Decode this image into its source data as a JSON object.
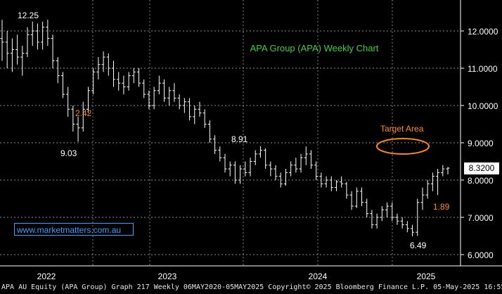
{
  "chart_data": {
    "type": "ohlc",
    "title": "APA Group (APA) Weekly Chart",
    "current_price_tag": "8.3200",
    "y_axis": {
      "ticks": [
        "12.0000",
        "11.0000",
        "10.0000",
        "9.0000",
        "8.0000",
        "7.0000",
        "6.0000"
      ],
      "tick_values": [
        12,
        11,
        10,
        9,
        8,
        7,
        6
      ],
      "ylim": [
        5.8,
        12.8
      ],
      "side": "right"
    },
    "x_axis": {
      "ticks": [
        "2022",
        "2023",
        "2024",
        "2025"
      ]
    },
    "grid": true,
    "annotations": [
      {
        "text": "12.25",
        "value": 12.25
      },
      {
        "text": "2.42",
        "color": "#ff8c1a"
      },
      {
        "text": "9.03",
        "value": 9.03
      },
      {
        "text": "8.91",
        "value": 8.91
      },
      {
        "text": "Target Area",
        "color": "#ff8c1a"
      },
      {
        "text": "1.89",
        "color": "#ff8c1a"
      },
      {
        "text": "6.49",
        "value": 6.49
      }
    ],
    "series": [
      {
        "values": [
          [
            11.8,
            12.3,
            11.2,
            11.7
          ],
          [
            11.7,
            12.0,
            11.0,
            11.4
          ],
          [
            11.4,
            11.8,
            10.9,
            11.5
          ],
          [
            11.5,
            11.9,
            11.1,
            11.3
          ],
          [
            11.3,
            11.6,
            10.8,
            11.4
          ],
          [
            11.4,
            12.1,
            11.3,
            11.9
          ],
          [
            11.9,
            12.25,
            11.6,
            12.0
          ],
          [
            12.0,
            12.2,
            11.5,
            11.7
          ],
          [
            11.7,
            12.25,
            11.5,
            12.1
          ],
          [
            12.1,
            12.3,
            11.6,
            11.8
          ],
          [
            11.8,
            11.9,
            11.0,
            11.2
          ],
          [
            11.2,
            11.3,
            10.6,
            10.8
          ],
          [
            10.8,
            10.9,
            10.2,
            10.3
          ],
          [
            10.3,
            10.5,
            9.7,
            9.9
          ],
          [
            9.9,
            10.0,
            9.3,
            9.5
          ],
          [
            9.5,
            9.7,
            9.03,
            9.4
          ],
          [
            9.4,
            10.1,
            9.3,
            9.9
          ],
          [
            9.9,
            10.5,
            9.8,
            10.4
          ],
          [
            10.4,
            11.0,
            10.3,
            10.9
          ],
          [
            10.9,
            11.3,
            10.7,
            11.1
          ],
          [
            11.1,
            11.45,
            10.9,
            11.3
          ],
          [
            11.3,
            11.4,
            10.8,
            11.0
          ],
          [
            11.0,
            11.2,
            10.5,
            10.7
          ],
          [
            10.7,
            10.9,
            10.4,
            10.6
          ],
          [
            10.6,
            10.8,
            10.3,
            10.5
          ],
          [
            10.5,
            10.9,
            10.4,
            10.8
          ],
          [
            10.8,
            11.0,
            10.6,
            10.9
          ],
          [
            10.9,
            11.0,
            10.5,
            10.6
          ],
          [
            10.6,
            10.7,
            10.2,
            10.3
          ],
          [
            10.3,
            10.4,
            9.9,
            10.0
          ],
          [
            10.0,
            10.5,
            9.9,
            10.4
          ],
          [
            10.4,
            10.8,
            10.3,
            10.6
          ],
          [
            10.6,
            10.7,
            10.1,
            10.2
          ],
          [
            10.2,
            10.5,
            10.0,
            10.4
          ],
          [
            10.4,
            10.6,
            10.1,
            10.2
          ],
          [
            10.2,
            10.3,
            9.9,
            10.0
          ],
          [
            10.0,
            10.2,
            9.8,
            10.1
          ],
          [
            10.1,
            10.2,
            9.6,
            9.7
          ],
          [
            9.7,
            10.0,
            9.5,
            9.9
          ],
          [
            9.9,
            10.1,
            9.7,
            9.8
          ],
          [
            9.8,
            9.9,
            9.4,
            9.5
          ],
          [
            9.5,
            9.6,
            9.0,
            9.1
          ],
          [
            9.1,
            9.2,
            8.7,
            8.8
          ],
          [
            8.8,
            8.9,
            8.5,
            8.6
          ],
          [
            8.6,
            8.7,
            8.2,
            8.3
          ],
          [
            8.3,
            8.5,
            8.1,
            8.4
          ],
          [
            8.4,
            8.5,
            7.9,
            8.0
          ],
          [
            8.0,
            8.4,
            7.9,
            8.3
          ],
          [
            8.3,
            8.5,
            8.1,
            8.2
          ],
          [
            8.2,
            8.6,
            8.1,
            8.5
          ],
          [
            8.5,
            8.8,
            8.4,
            8.7
          ],
          [
            8.7,
            8.91,
            8.6,
            8.8
          ],
          [
            8.8,
            8.85,
            8.3,
            8.4
          ],
          [
            8.4,
            8.5,
            8.1,
            8.3
          ],
          [
            8.3,
            8.4,
            8.0,
            8.1
          ],
          [
            8.1,
            8.2,
            7.8,
            7.9
          ],
          [
            7.9,
            8.3,
            7.85,
            8.2
          ],
          [
            8.2,
            8.5,
            8.1,
            8.4
          ],
          [
            8.4,
            8.6,
            8.2,
            8.3
          ],
          [
            8.3,
            8.7,
            8.2,
            8.6
          ],
          [
            8.6,
            8.9,
            8.4,
            8.7
          ],
          [
            8.7,
            8.8,
            8.3,
            8.4
          ],
          [
            8.4,
            8.5,
            8.0,
            8.1
          ],
          [
            8.1,
            8.2,
            7.8,
            7.9
          ],
          [
            7.9,
            8.1,
            7.8,
            8.0
          ],
          [
            8.0,
            8.1,
            7.7,
            7.8
          ],
          [
            7.8,
            8.0,
            7.7,
            7.95
          ],
          [
            7.95,
            8.1,
            7.8,
            7.9
          ],
          [
            7.9,
            7.95,
            7.5,
            7.6
          ],
          [
            7.6,
            7.7,
            7.2,
            7.3
          ],
          [
            7.3,
            7.8,
            7.25,
            7.7
          ],
          [
            7.7,
            7.8,
            7.3,
            7.4
          ],
          [
            7.4,
            7.5,
            7.0,
            7.1
          ],
          [
            7.1,
            7.2,
            6.7,
            6.8
          ],
          [
            6.8,
            7.1,
            6.7,
            7.0
          ],
          [
            7.0,
            7.3,
            6.9,
            7.2
          ],
          [
            7.2,
            7.4,
            7.0,
            7.3
          ],
          [
            7.3,
            7.4,
            6.9,
            7.0
          ],
          [
            7.0,
            7.1,
            6.8,
            6.9
          ],
          [
            6.9,
            7.0,
            6.7,
            6.8
          ],
          [
            6.8,
            6.9,
            6.6,
            6.7
          ],
          [
            6.7,
            6.8,
            6.49,
            6.6
          ],
          [
            6.6,
            7.5,
            6.5,
            7.4
          ],
          [
            7.4,
            7.8,
            7.2,
            7.6
          ],
          [
            7.6,
            8.0,
            7.5,
            7.9
          ],
          [
            7.9,
            8.2,
            7.7,
            8.1
          ],
          [
            8.1,
            8.3,
            7.6,
            8.2
          ],
          [
            8.2,
            8.4,
            8.1,
            8.3
          ],
          [
            8.3,
            8.35,
            8.15,
            8.32
          ]
        ]
      }
    ],
    "overlay_color": "#3ecf3e",
    "accent_color": "#ff8c1a"
  },
  "brand": "www.marketmatters.com.au",
  "footer": "APA AU Equity (APA Group) Graph 217  Weekly 06MAY2020-05MAY2025  Copyright© 2025 Bloomberg Finance L.P.   05-May-2025 16:55:37"
}
